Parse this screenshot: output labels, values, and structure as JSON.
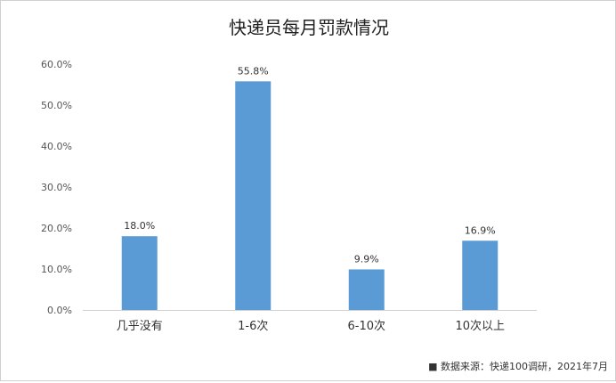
{
  "chart_data": {
    "type": "bar",
    "title": "快递员每月罚款情况",
    "categories": [
      "几乎没有",
      "1-6次",
      "6-10次",
      "10次以上"
    ],
    "values": [
      18.0,
      55.8,
      9.9,
      16.9
    ],
    "data_labels": [
      "18.0%",
      "55.8%",
      "9.9%",
      "16.9%"
    ],
    "yticks": [
      "0.0%",
      "10.0%",
      "20.0%",
      "30.0%",
      "40.0%",
      "50.0%",
      "60.0%"
    ],
    "ylim": [
      0,
      60
    ],
    "grid": false,
    "bar_color": "#5b9bd5",
    "source": "■ 数据来源：快递100调研，2021年7月"
  }
}
